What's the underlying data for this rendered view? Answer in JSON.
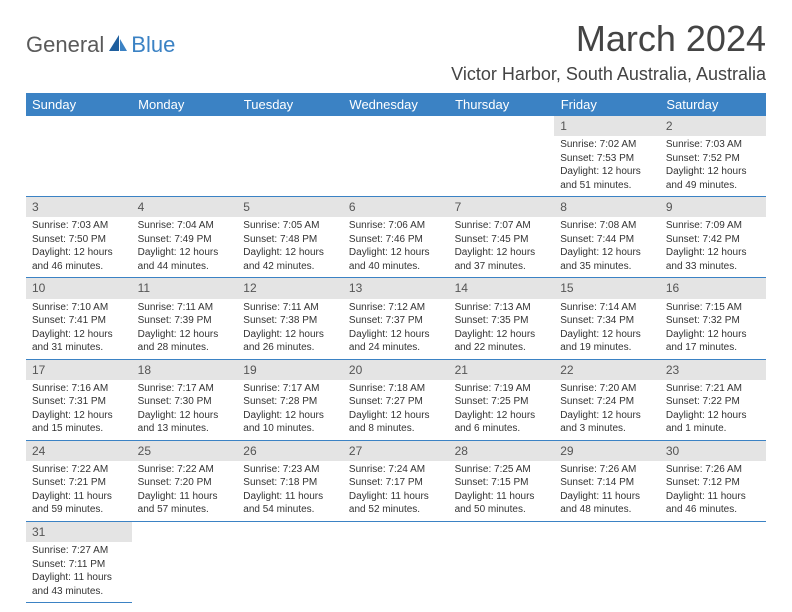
{
  "brand": {
    "part1": "General",
    "part2": "Blue"
  },
  "title": "March 2024",
  "location": "Victor Harbor, South Australia, Australia",
  "colors": {
    "accent": "#3b82c4",
    "header_bg": "#3b82c4",
    "daynum_bg": "#e4e4e4"
  },
  "weekdays": [
    "Sunday",
    "Monday",
    "Tuesday",
    "Wednesday",
    "Thursday",
    "Friday",
    "Saturday"
  ],
  "weeks": [
    [
      null,
      null,
      null,
      null,
      null,
      {
        "n": "1",
        "sr": "7:02 AM",
        "ss": "7:53 PM",
        "dl": "12 hours and 51 minutes."
      },
      {
        "n": "2",
        "sr": "7:03 AM",
        "ss": "7:52 PM",
        "dl": "12 hours and 49 minutes."
      }
    ],
    [
      {
        "n": "3",
        "sr": "7:03 AM",
        "ss": "7:50 PM",
        "dl": "12 hours and 46 minutes."
      },
      {
        "n": "4",
        "sr": "7:04 AM",
        "ss": "7:49 PM",
        "dl": "12 hours and 44 minutes."
      },
      {
        "n": "5",
        "sr": "7:05 AM",
        "ss": "7:48 PM",
        "dl": "12 hours and 42 minutes."
      },
      {
        "n": "6",
        "sr": "7:06 AM",
        "ss": "7:46 PM",
        "dl": "12 hours and 40 minutes."
      },
      {
        "n": "7",
        "sr": "7:07 AM",
        "ss": "7:45 PM",
        "dl": "12 hours and 37 minutes."
      },
      {
        "n": "8",
        "sr": "7:08 AM",
        "ss": "7:44 PM",
        "dl": "12 hours and 35 minutes."
      },
      {
        "n": "9",
        "sr": "7:09 AM",
        "ss": "7:42 PM",
        "dl": "12 hours and 33 minutes."
      }
    ],
    [
      {
        "n": "10",
        "sr": "7:10 AM",
        "ss": "7:41 PM",
        "dl": "12 hours and 31 minutes."
      },
      {
        "n": "11",
        "sr": "7:11 AM",
        "ss": "7:39 PM",
        "dl": "12 hours and 28 minutes."
      },
      {
        "n": "12",
        "sr": "7:11 AM",
        "ss": "7:38 PM",
        "dl": "12 hours and 26 minutes."
      },
      {
        "n": "13",
        "sr": "7:12 AM",
        "ss": "7:37 PM",
        "dl": "12 hours and 24 minutes."
      },
      {
        "n": "14",
        "sr": "7:13 AM",
        "ss": "7:35 PM",
        "dl": "12 hours and 22 minutes."
      },
      {
        "n": "15",
        "sr": "7:14 AM",
        "ss": "7:34 PM",
        "dl": "12 hours and 19 minutes."
      },
      {
        "n": "16",
        "sr": "7:15 AM",
        "ss": "7:32 PM",
        "dl": "12 hours and 17 minutes."
      }
    ],
    [
      {
        "n": "17",
        "sr": "7:16 AM",
        "ss": "7:31 PM",
        "dl": "12 hours and 15 minutes."
      },
      {
        "n": "18",
        "sr": "7:17 AM",
        "ss": "7:30 PM",
        "dl": "12 hours and 13 minutes."
      },
      {
        "n": "19",
        "sr": "7:17 AM",
        "ss": "7:28 PM",
        "dl": "12 hours and 10 minutes."
      },
      {
        "n": "20",
        "sr": "7:18 AM",
        "ss": "7:27 PM",
        "dl": "12 hours and 8 minutes."
      },
      {
        "n": "21",
        "sr": "7:19 AM",
        "ss": "7:25 PM",
        "dl": "12 hours and 6 minutes."
      },
      {
        "n": "22",
        "sr": "7:20 AM",
        "ss": "7:24 PM",
        "dl": "12 hours and 3 minutes."
      },
      {
        "n": "23",
        "sr": "7:21 AM",
        "ss": "7:22 PM",
        "dl": "12 hours and 1 minute."
      }
    ],
    [
      {
        "n": "24",
        "sr": "7:22 AM",
        "ss": "7:21 PM",
        "dl": "11 hours and 59 minutes."
      },
      {
        "n": "25",
        "sr": "7:22 AM",
        "ss": "7:20 PM",
        "dl": "11 hours and 57 minutes."
      },
      {
        "n": "26",
        "sr": "7:23 AM",
        "ss": "7:18 PM",
        "dl": "11 hours and 54 minutes."
      },
      {
        "n": "27",
        "sr": "7:24 AM",
        "ss": "7:17 PM",
        "dl": "11 hours and 52 minutes."
      },
      {
        "n": "28",
        "sr": "7:25 AM",
        "ss": "7:15 PM",
        "dl": "11 hours and 50 minutes."
      },
      {
        "n": "29",
        "sr": "7:26 AM",
        "ss": "7:14 PM",
        "dl": "11 hours and 48 minutes."
      },
      {
        "n": "30",
        "sr": "7:26 AM",
        "ss": "7:12 PM",
        "dl": "11 hours and 46 minutes."
      }
    ],
    [
      {
        "n": "31",
        "sr": "7:27 AM",
        "ss": "7:11 PM",
        "dl": "11 hours and 43 minutes."
      },
      null,
      null,
      null,
      null,
      null,
      null
    ]
  ],
  "labels": {
    "sunrise": "Sunrise: ",
    "sunset": "Sunset: ",
    "daylight": "Daylight: "
  }
}
